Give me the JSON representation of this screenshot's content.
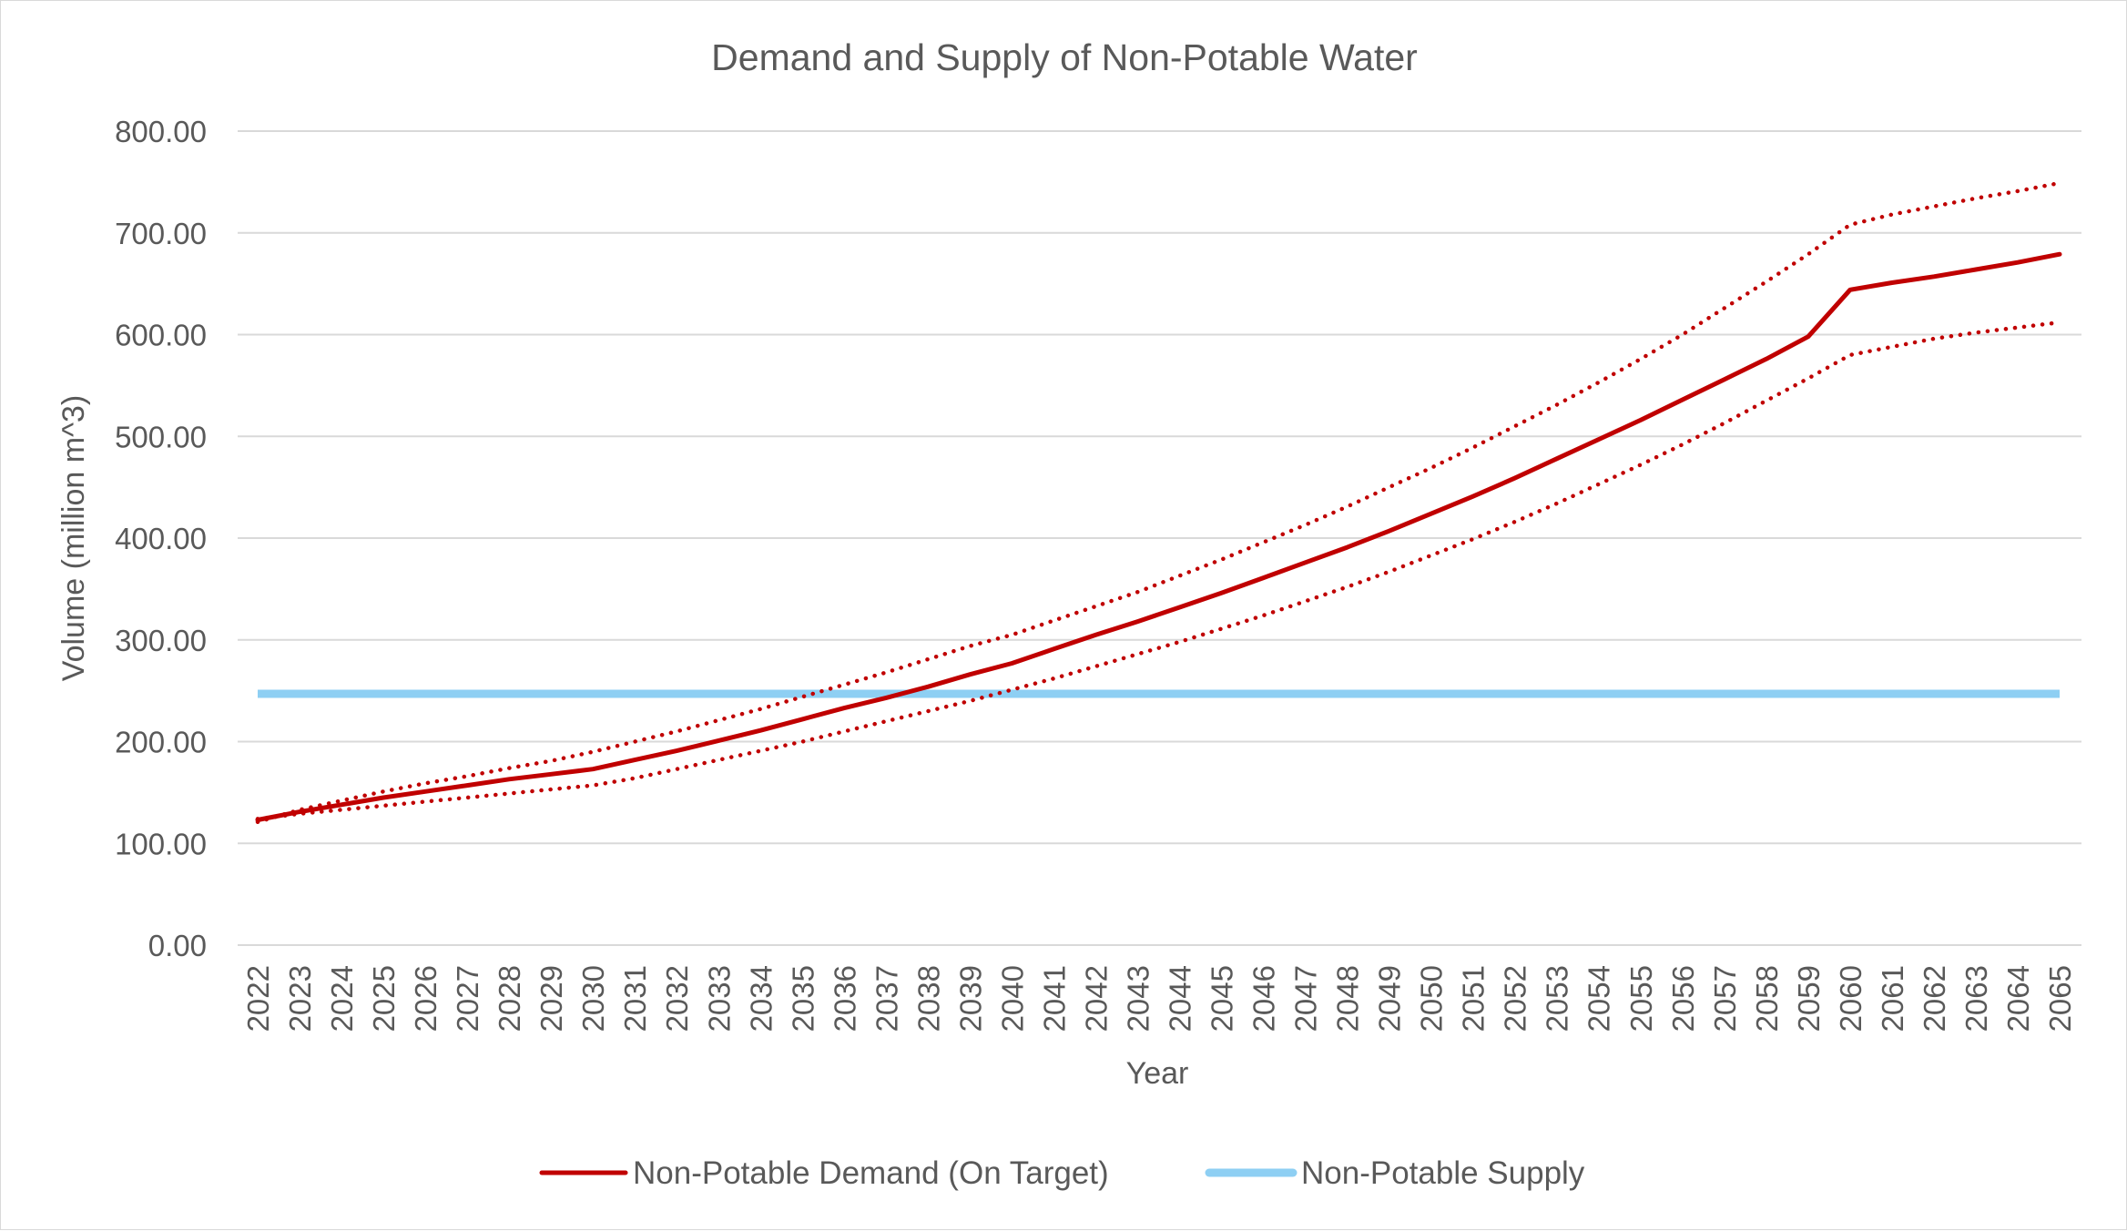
{
  "chart_data": {
    "type": "line",
    "title": "Demand and Supply of Non-Potable Water",
    "xlabel": "Year",
    "ylabel": "Volume (million m^3)",
    "ylim": [
      0,
      800
    ],
    "yticks": [
      "0.00",
      "100.00",
      "200.00",
      "300.00",
      "400.00",
      "500.00",
      "600.00",
      "700.00",
      "800.00"
    ],
    "grid": true,
    "legend_position": "bottom",
    "x": [
      "2022",
      "2023",
      "2024",
      "2025",
      "2026",
      "2027",
      "2028",
      "2029",
      "2030",
      "2031",
      "2032",
      "2033",
      "2034",
      "2035",
      "2036",
      "2037",
      "2038",
      "2039",
      "2040",
      "2041",
      "2042",
      "2043",
      "2044",
      "2045",
      "2046",
      "2047",
      "2048",
      "2049",
      "2050",
      "2051",
      "2052",
      "2053",
      "2054",
      "2055",
      "2056",
      "2057",
      "2058",
      "2059",
      "2060",
      "2061",
      "2062",
      "2063",
      "2064",
      "2065"
    ],
    "series": [
      {
        "name": "Non-Potable Demand (On Target)",
        "color": "#c00000",
        "style": "solid",
        "legend": true,
        "values": [
          123,
          131,
          138,
          145,
          151,
          157,
          163,
          168,
          173,
          182,
          191,
          201,
          211,
          222,
          233,
          243,
          254,
          266,
          277,
          291,
          305,
          318,
          332,
          346,
          361,
          376,
          391,
          407,
          424,
          441,
          459,
          478,
          497,
          516,
          536,
          556,
          576,
          598,
          644,
          651,
          657,
          664,
          671,
          679
        ]
      },
      {
        "name": "",
        "color": "#c00000",
        "style": "dotted",
        "legend": false,
        "values": [
          121,
          133,
          142,
          151,
          159,
          166,
          174,
          181,
          190,
          200,
          210,
          221,
          232,
          244,
          256,
          268,
          281,
          294,
          305,
          319,
          333,
          347,
          363,
          379,
          396,
          413,
          431,
          450,
          469,
          489,
          510,
          531,
          553,
          576,
          600,
          626,
          652,
          679,
          708,
          718,
          726,
          734,
          741,
          749
        ]
      },
      {
        "name": "",
        "color": "#c00000",
        "style": "dotted",
        "legend": false,
        "values": [
          124,
          129,
          133,
          137,
          141,
          145,
          149,
          153,
          157,
          164,
          173,
          182,
          191,
          200,
          210,
          220,
          230,
          240,
          251,
          262,
          274,
          286,
          298,
          311,
          324,
          338,
          352,
          367,
          383,
          399,
          416,
          434,
          453,
          472,
          492,
          513,
          535,
          557,
          580,
          588,
          596,
          602,
          607,
          612
        ]
      },
      {
        "name": "Non-Potable Supply",
        "color": "#8ecff3",
        "style": "solid",
        "legend": true,
        "values": [
          247,
          247,
          247,
          247,
          247,
          247,
          247,
          247,
          247,
          247,
          247,
          247,
          247,
          247,
          247,
          247,
          247,
          247,
          247,
          247,
          247,
          247,
          247,
          247,
          247,
          247,
          247,
          247,
          247,
          247,
          247,
          247,
          247,
          247,
          247,
          247,
          247,
          247,
          247,
          247,
          247,
          247,
          247,
          247
        ]
      }
    ]
  }
}
